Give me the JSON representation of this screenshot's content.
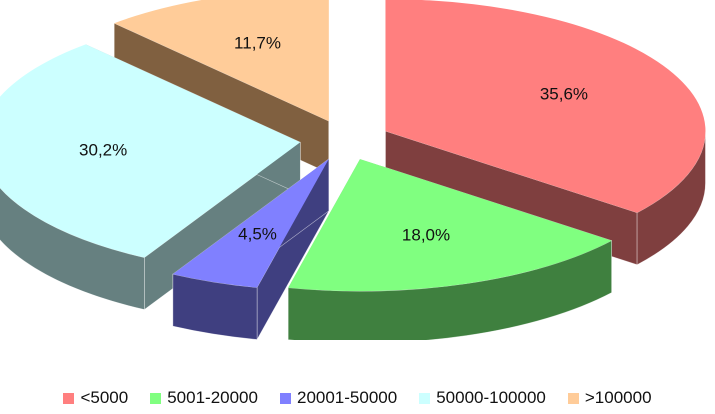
{
  "chart_data": {
    "type": "pie",
    "title": "",
    "style": "3d-exploded",
    "legend_position": "bottom",
    "categories": [
      "<5000",
      "5001-20000",
      "20001-50000",
      "50000-100000",
      ">100000"
    ],
    "values": [
      35.6,
      18.0,
      4.5,
      30.2,
      11.7
    ],
    "data_labels": [
      "35,6%",
      "18,0%",
      "4,5%",
      "30,2%",
      "11,7%"
    ],
    "colors": [
      "#ff7f7f",
      "#80ff80",
      "#8080ff",
      "#ccffff",
      "#ffcc99"
    ],
    "side_colors": [
      "#7f3f3f",
      "#3f803f",
      "#3f3f80",
      "#668080",
      "#806040"
    ]
  }
}
